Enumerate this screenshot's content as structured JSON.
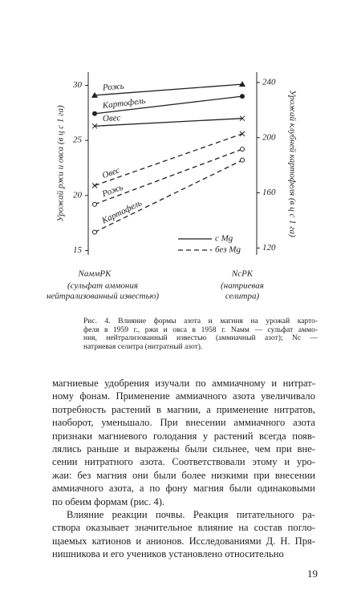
{
  "chart_data": {
    "type": "line",
    "y_label": "Урожай ржи и овса (в ц с 1 га)",
    "y2_label": "Урожай клубней картофеля (в ц с 1 га)",
    "categories": [
      "NаммPK",
      "NсPK"
    ],
    "category_notes": [
      [
        "(сульфат аммония",
        "нейтрализованный известью)"
      ],
      [
        "(натриевая",
        "селитра)"
      ]
    ],
    "ylim": [
      14.6,
      31.2
    ],
    "yticks": [
      15,
      20,
      25,
      30
    ],
    "y2lim": [
      115,
      247.5
    ],
    "y2ticks": [
      120,
      160,
      200,
      240
    ],
    "legend": [
      {
        "label": "с Mg",
        "dashed": false
      },
      {
        "label": "без Mg",
        "dashed": true
      }
    ],
    "color": "#222",
    "series": [
      {
        "name": "Рожь",
        "dashed": false,
        "marker": "triangle",
        "values": [
          29.1,
          30.1
        ]
      },
      {
        "name": "Картофель",
        "dashed": false,
        "marker": "dot",
        "axis": "y2",
        "values": [
          217.4,
          230
        ]
      },
      {
        "name": "Овес",
        "dashed": false,
        "marker": "cross",
        "values": [
          26.3,
          27.0
        ]
      },
      {
        "name": "Овес",
        "dashed": true,
        "marker": "cross",
        "values": [
          20.9,
          25.6
        ]
      },
      {
        "name": "Рожь",
        "dashed": true,
        "marker": "ring",
        "values": [
          19.2,
          24.2
        ]
      },
      {
        "name": "Картофель",
        "dashed": true,
        "marker": "ring",
        "axis": "y2",
        "values": [
          131.5,
          183.7
        ]
      }
    ]
  },
  "caption": [
    "Рис. 4. Влияние формы азота и магния на урожай карто-",
    "феля в 1959 г., ржи и овса в 1958 г. Nамм — сульфат аммо-",
    "ния, нейтрализованный известью (аммиачный азот); Nс —",
    "натриевая селитра (нитратный азот)."
  ],
  "body": [
    "магниевые удобрения изучали по аммиачному и нитрат-",
    "ному фонам. Применение аммиачного азота увеличивало",
    "потребность растений в магнии, а применение нитратов,",
    "наоборот, уменьшало. При внесении аммиачного азота",
    "признаки магниевого голодания у растений всегда появ-",
    "лялись раньше и выражены были сильнее, чем при вне-",
    "сении нитратного азота. Соответствовали этому и уро-",
    "жаи: без магния они были более низкими при внесении",
    "аммиачного азота, а по фону магния были одинаковыми",
    "по обеим формам (рис. 4).",
    "Влияние реакции почвы. Реакция питательного ра-",
    "створа оказывает значительное влияние на состав погло-",
    "щаемых катионов и анионов. Исследованиями Д. Н. Пря-",
    "нишникова и его учеников установлено относительно"
  ],
  "page_number": "19"
}
